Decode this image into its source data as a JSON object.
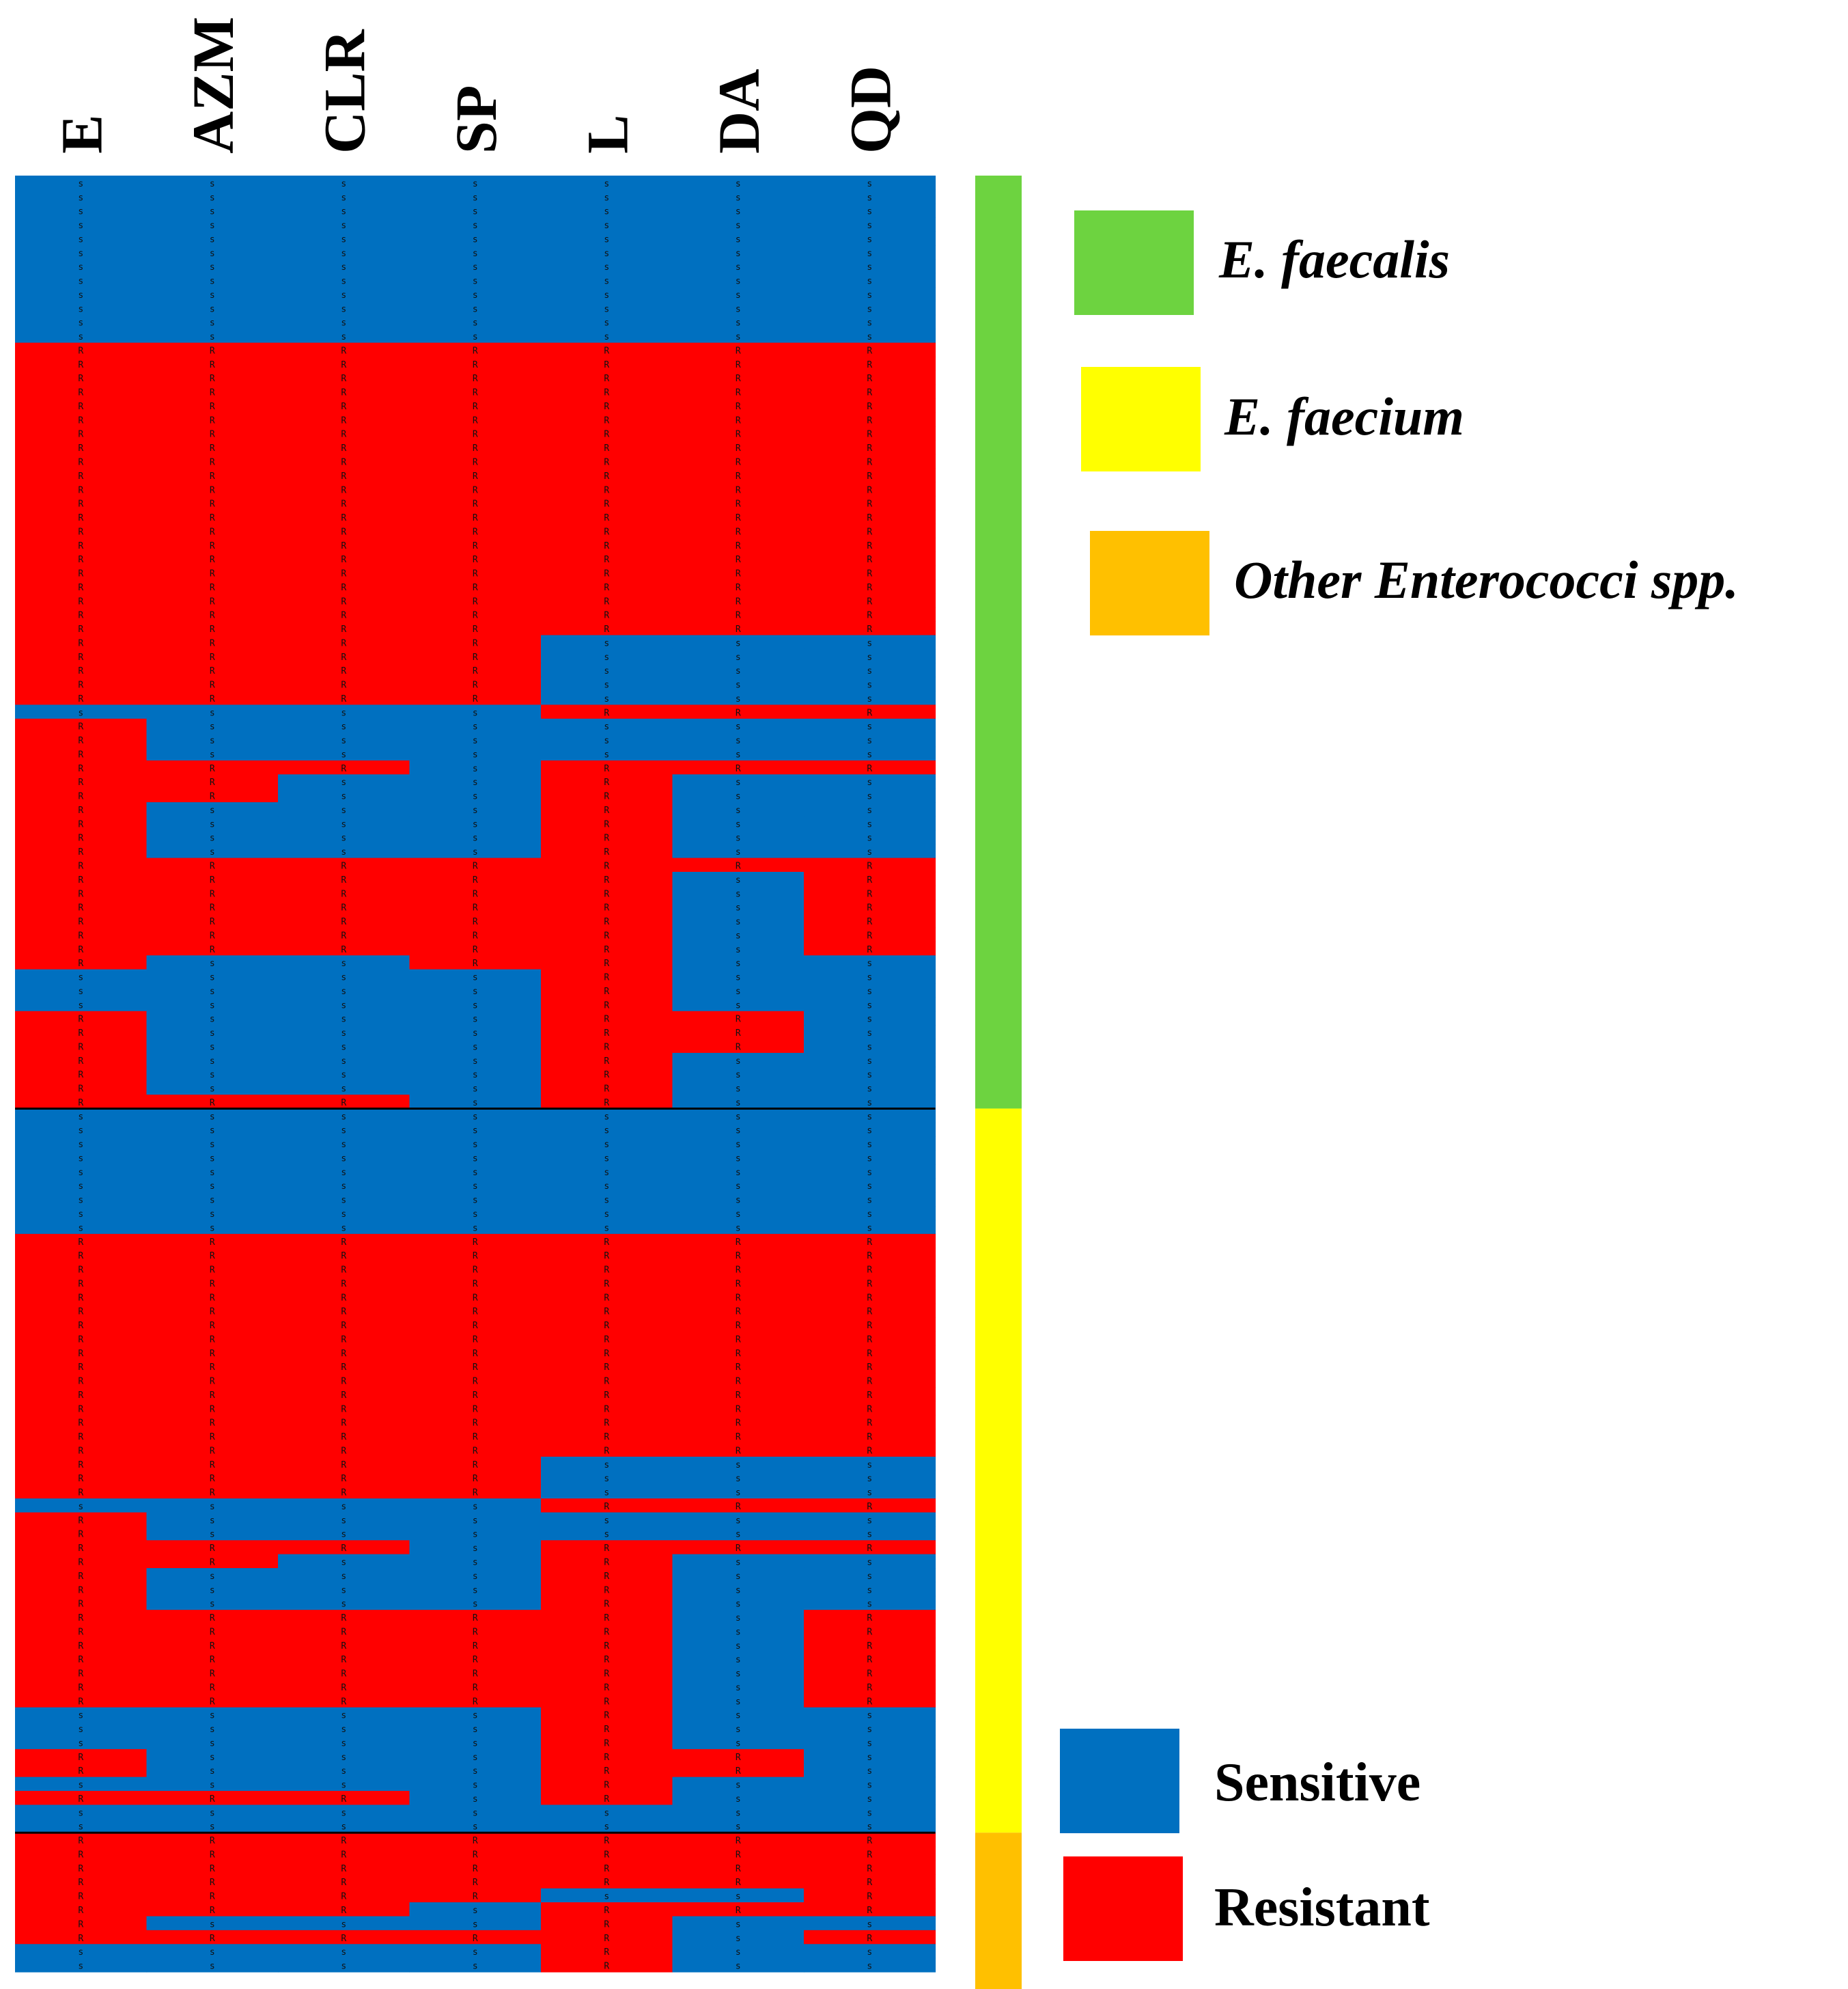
{
  "chart_data": {
    "type": "heatmap",
    "title": "",
    "columns": [
      "E",
      "AZM",
      "CLR",
      "SP",
      "L",
      "DA",
      "QD"
    ],
    "status_codes": {
      "S": "s",
      "R": "R"
    },
    "groups": [
      {
        "name": "E. faecalis",
        "color": "#6dd340",
        "row_start": 0,
        "row_end": 66
      },
      {
        "name": "E. faecium",
        "color": "#ffff00",
        "row_start": 67,
        "row_end": 118
      },
      {
        "name": "Other Enterococci spp.",
        "color": "#ffc000",
        "row_start": 119,
        "row_end": 130
      }
    ],
    "status_legend": [
      {
        "label": "Sensitive",
        "code": "S",
        "color": "#0070c0"
      },
      {
        "label": "Resistant",
        "code": "R",
        "color": "#ff0000"
      }
    ],
    "rows": [
      "SSSSSSS",
      "SSSSSSS",
      "SSSSSSS",
      "SSSSSSS",
      "SSSSSSS",
      "SSSSSSS",
      "SSSSSSS",
      "SSSSSSS",
      "SSSSSSS",
      "SSSSSSS",
      "SSSSSSS",
      "SSSSSSS",
      "RRRRRRR",
      "RRRRRRR",
      "RRRRRRR",
      "RRRRRRR",
      "RRRRRRR",
      "RRRRRRR",
      "RRRRRRR",
      "RRRRRRR",
      "RRRRRRR",
      "RRRRRRR",
      "RRRRRRR",
      "RRRRRRR",
      "RRRRRRR",
      "RRRRRRR",
      "RRRRRRR",
      "RRRRRRR",
      "RRRRRRR",
      "RRRRRRR",
      "RRRRRRR",
      "RRRRRRR",
      "RRRRRRR",
      "RRRRSSS",
      "RRRRSSS",
      "RRRRSSS",
      "RRRRSSS",
      "RRRRSSS",
      "SSSSRRR",
      "RSSSSSS",
      "RSSSSSS",
      "RSSSSSS",
      "RRRSRRR",
      "RRSSRSS",
      "RRSSRSS",
      "RSSSRSS",
      "RSSSRSS",
      "RSSSRSS",
      "RSSSRSS",
      "RRRRRRR",
      "RRRRRSR",
      "RRRRRSR",
      "RRRRRSR",
      "RRRRRSR",
      "RRRRRSR",
      "RRRRRSR",
      "RSSRRSS",
      "SSSSRSS",
      "SSSSRSS",
      "SSSSRSS",
      "RSSSRRS",
      "RSSSRRS",
      "RSSSRRS",
      "RSSSRSS",
      "RSSSRSS",
      "RSSSRSS",
      "RRRSRSS",
      "SSSSSSS",
      "SSSSSSS",
      "SSSSSSS",
      "SSSSSSS",
      "SSSSSSS",
      "SSSSSSS",
      "SSSSSSS",
      "SSSSSSS",
      "SSSSSSS",
      "RRRRRRR",
      "RRRRRRR",
      "RRRRRRR",
      "RRRRRRR",
      "RRRRRRR",
      "RRRRRRR",
      "RRRRRRR",
      "RRRRRRR",
      "RRRRRRR",
      "RRRRRRR",
      "RRRRRRR",
      "RRRRRRR",
      "RRRRRRR",
      "RRRRRRR",
      "RRRRRRR",
      "RRRRRRR",
      "RRRRSSS",
      "RRRRSSS",
      "RRRRSSS",
      "SSSSRRR",
      "RSSSSSS",
      "RSSSSSS",
      "RRRSRRR",
      "RRSSRSS",
      "RSSSRSS",
      "RSSSRSS",
      "RSSSRSS",
      "RRRRRSR",
      "RRRRRSR",
      "RRRRRSR",
      "RRRRRSR",
      "RRRRRSR",
      "RRRRRSR",
      "RRRRRSR",
      "SSSSRSS",
      "SSSSRSS",
      "SSSSRSS",
      "RSSSRRS",
      "RSSSRRS",
      "SSSSRSS",
      "RRRSRSS",
      "SSSSSSS",
      "SSSSSSS",
      "RRRRRRR",
      "RRRRRRR",
      "RRRRRRR",
      "RRRRRRR",
      "RRRRSSR",
      "RRRSRRR",
      "RSSSRSS",
      "RRRRRSR",
      "SSSSRSS",
      "SSSSRSS"
    ]
  }
}
